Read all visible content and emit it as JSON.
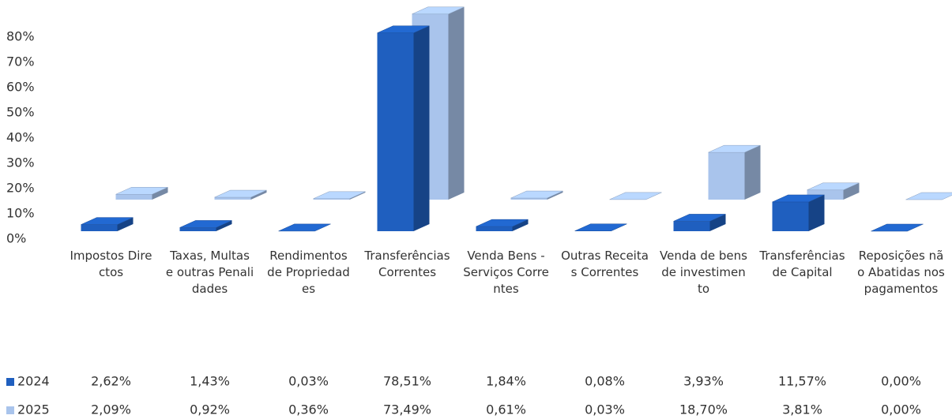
{
  "chart_data": {
    "type": "bar3d",
    "categories": [
      "Impostos Directos",
      "Taxas, Multas e outras Penalidades",
      "Rendimentos de Propriedades",
      "Transferências Correntes",
      "Venda Bens - Serviços Correntes",
      "Outras Receitas Correntes",
      "Venda de bens de investimento",
      "Transferências de Capital",
      "Reposições não Abatidas nos pagamentos"
    ],
    "series": [
      {
        "name": "2024",
        "color": "#1f5fbf",
        "values": [
          2.62,
          1.43,
          0.03,
          78.51,
          1.84,
          0.08,
          3.93,
          11.57,
          0.0
        ],
        "value_labels": [
          "2,62%",
          "1,43%",
          "0,03%",
          "78,51%",
          "1,84%",
          "0,08%",
          "3,93%",
          "11,57%",
          "0,00%"
        ]
      },
      {
        "name": "2025",
        "color": "#a9c4ec",
        "values": [
          2.09,
          0.92,
          0.36,
          73.49,
          0.61,
          0.03,
          18.7,
          3.81,
          0.0
        ],
        "value_labels": [
          "2,09%",
          "0,92%",
          "0,36%",
          "73,49%",
          "0,61%",
          "0,03%",
          "18,70%",
          "3,81%",
          "0,00%"
        ]
      }
    ],
    "ylim": [
      0,
      80
    ],
    "yticks": [
      {
        "value": 0,
        "label": "0%"
      },
      {
        "value": 10,
        "label": "10%"
      },
      {
        "value": 20,
        "label": "20%"
      },
      {
        "value": 30,
        "label": "30%"
      },
      {
        "value": 40,
        "label": "40%"
      },
      {
        "value": 50,
        "label": "50%"
      },
      {
        "value": 60,
        "label": "60%"
      },
      {
        "value": 70,
        "label": "70%"
      },
      {
        "value": 80,
        "label": "80%"
      }
    ]
  }
}
